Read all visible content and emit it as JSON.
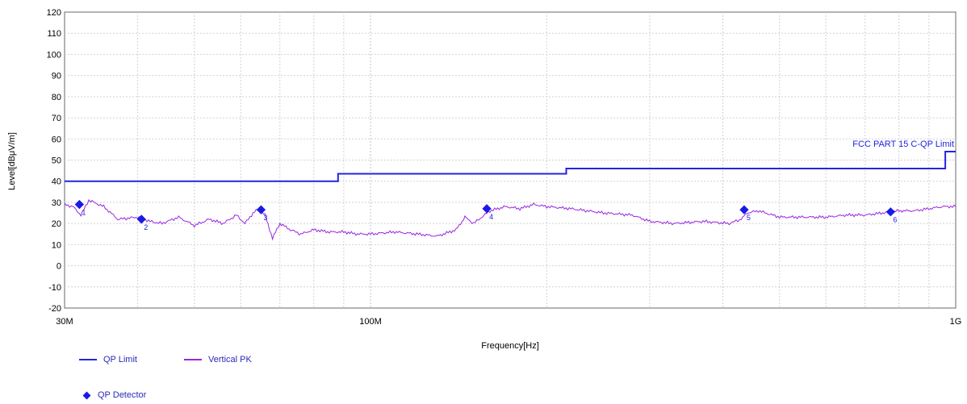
{
  "chart_data": {
    "type": "line",
    "xlabel": "Frequency[Hz]",
    "ylabel": "Level[dBμV/m]",
    "x_scale": "log",
    "xlim": [
      30000000,
      1000000000
    ],
    "ylim": [
      -20,
      120
    ],
    "y_ticks": [
      -20,
      -10,
      0,
      10,
      20,
      30,
      40,
      50,
      60,
      70,
      80,
      90,
      100,
      110,
      120
    ],
    "x_ticks": [
      {
        "value": 30000000,
        "label": "30M"
      },
      {
        "value": 100000000,
        "label": "100M"
      },
      {
        "value": 1000000000,
        "label": "1G"
      }
    ],
    "x_minor_gridlines": [
      40000000,
      50000000,
      60000000,
      70000000,
      80000000,
      90000000,
      200000000,
      300000000,
      400000000,
      500000000,
      600000000,
      700000000,
      800000000,
      900000000
    ],
    "grid": true,
    "limit_annotation": "FCC PART 15 C-QP Limit",
    "series": [
      {
        "name": "QP Limit",
        "color": "#2424e0",
        "style": "step",
        "x": [
          30000000,
          88000000,
          88000000,
          216000000,
          216000000,
          960000000,
          960000000,
          1000000000
        ],
        "y": [
          40,
          40,
          43.5,
          43.5,
          46,
          46,
          54,
          54
        ]
      },
      {
        "name": "Vertical PK",
        "color": "#9a26e0",
        "x": [
          30000000,
          31000000,
          32000000,
          33000000,
          35000000,
          37000000,
          40000000,
          42000000,
          44000000,
          47000000,
          50000000,
          53000000,
          56000000,
          59000000,
          61000000,
          63000000,
          64500000,
          66000000,
          68000000,
          70000000,
          73000000,
          76000000,
          80000000,
          85000000,
          90000000,
          95000000,
          100000000,
          110000000,
          120000000,
          130000000,
          140000000,
          145000000,
          150000000,
          160000000,
          170000000,
          180000000,
          190000000,
          200000000,
          220000000,
          250000000,
          280000000,
          300000000,
          330000000,
          370000000,
          410000000,
          430000000,
          440000000,
          460000000,
          500000000,
          550000000,
          600000000,
          650000000,
          700000000,
          750000000,
          800000000,
          850000000,
          900000000,
          950000000,
          1000000000
        ],
        "y": [
          29,
          28,
          24,
          31,
          28,
          22,
          23,
          21,
          20,
          23,
          19,
          22,
          20,
          24,
          20,
          25,
          27,
          24,
          13,
          20,
          17,
          15,
          17,
          16,
          16,
          15,
          15,
          16,
          15,
          14,
          17,
          23,
          20,
          26,
          28,
          27,
          29,
          28,
          27,
          25,
          24,
          21,
          20,
          21,
          20,
          22,
          25,
          26,
          23,
          23,
          23,
          24,
          24,
          25,
          26,
          26,
          27,
          28,
          28
        ]
      }
    ],
    "markers": {
      "name": "QP Detector",
      "color": "#1a1ae6",
      "points": [
        {
          "label": "1",
          "x": 31800000,
          "y": 29
        },
        {
          "label": "2",
          "x": 40600000,
          "y": 22
        },
        {
          "label": "3",
          "x": 65000000,
          "y": 26.5
        },
        {
          "label": "4",
          "x": 158000000,
          "y": 27
        },
        {
          "label": "5",
          "x": 435000000,
          "y": 26.5
        },
        {
          "label": "6",
          "x": 774000000,
          "y": 25.5
        }
      ]
    }
  },
  "legend": {
    "qp_limit": "QP Limit",
    "vertical_pk": "Vertical PK",
    "qp_detector": "QP Detector"
  }
}
